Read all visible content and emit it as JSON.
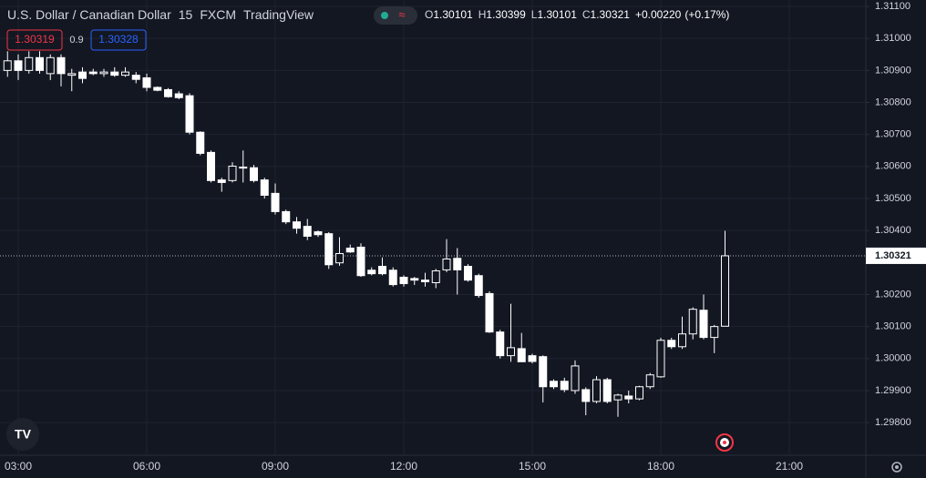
{
  "chart_data": {
    "type": "candlestick",
    "title": "U.S. Dollar / Canadian Dollar",
    "interval": "15",
    "source": "FXCM",
    "brand": "TradingView",
    "legend": {
      "labels": [
        "O",
        "H",
        "L",
        "C"
      ],
      "values": [
        1.30101,
        1.30399,
        1.30101,
        1.30321
      ],
      "change": "+0.00220",
      "change_pct": "(+0.17%)"
    },
    "sell": 1.30319,
    "spread": 0.9,
    "buy": 1.30328,
    "last_price": 1.30321,
    "up_color": "#131722",
    "down_color": "#ffffff",
    "wick_color": "#ffffff",
    "x": [
      "02:45",
      "03:00",
      "03:15",
      "03:30",
      "03:45",
      "04:00",
      "04:15",
      "04:30",
      "04:45",
      "05:00",
      "05:15",
      "05:30",
      "05:45",
      "06:00",
      "06:15",
      "06:30",
      "06:45",
      "07:00",
      "07:15",
      "07:30",
      "07:45",
      "08:00",
      "08:15",
      "08:30",
      "08:45",
      "09:00",
      "09:15",
      "09:30",
      "09:45",
      "10:00",
      "10:15",
      "10:30",
      "10:45",
      "11:00",
      "11:15",
      "11:30",
      "11:45",
      "12:00",
      "12:15",
      "12:30",
      "12:45",
      "13:00",
      "13:15",
      "13:30",
      "13:45",
      "14:00",
      "14:15",
      "14:30",
      "14:45",
      "15:00",
      "15:15",
      "15:30",
      "15:45",
      "16:00",
      "16:15",
      "16:30",
      "16:45",
      "17:00",
      "17:15",
      "17:30",
      "17:45",
      "18:00",
      "18:15",
      "18:30",
      "18:45",
      "19:00",
      "19:15",
      "19:30"
    ],
    "open": [
      1.309,
      1.3093,
      1.309,
      1.3094,
      1.3089,
      1.3094,
      1.30885,
      1.30895,
      1.30895,
      1.3089,
      1.30895,
      1.30885,
      1.30885,
      1.30877,
      1.30847,
      1.3084,
      1.30827,
      1.30821,
      1.30707,
      1.30644,
      1.30558,
      1.30556,
      1.30598,
      1.30596,
      1.30558,
      1.30516,
      1.30459,
      1.30427,
      1.30413,
      1.30396,
      1.3039,
      1.30299,
      1.30345,
      1.30348,
      1.30276,
      1.30288,
      1.30276,
      1.30254,
      1.3025,
      1.30245,
      1.30237,
      1.30277,
      1.30313,
      1.30288,
      1.30259,
      1.30203,
      1.30083,
      1.30009,
      1.30031,
      1.30009,
      1.30006,
      1.29929,
      1.29929,
      1.299,
      1.29903,
      1.29866,
      1.29934,
      1.29871,
      1.29883,
      1.29874,
      1.29912,
      1.29943,
      1.30057,
      1.30037,
      1.30077,
      1.30151,
      1.30066,
      1.30101
    ],
    "high": [
      1.3096,
      1.3095,
      1.3096,
      1.3096,
      1.3095,
      1.3095,
      1.30905,
      1.3091,
      1.30905,
      1.30905,
      1.3091,
      1.3091,
      1.30895,
      1.3089,
      1.3085,
      1.30845,
      1.30835,
      1.30829,
      1.3071,
      1.3065,
      1.30565,
      1.30613,
      1.3065,
      1.30605,
      1.30565,
      1.30547,
      1.30465,
      1.30442,
      1.30436,
      1.304,
      1.30395,
      1.30379,
      1.30356,
      1.3036,
      1.30285,
      1.30316,
      1.30285,
      1.3026,
      1.30255,
      1.30268,
      1.3028,
      1.30373,
      1.30345,
      1.30295,
      1.30265,
      1.3021,
      1.3009,
      1.30171,
      1.3008,
      1.30015,
      1.3001,
      1.29935,
      1.2994,
      1.29994,
      1.2991,
      1.29945,
      1.2994,
      1.2989,
      1.299,
      1.29915,
      1.29955,
      1.30065,
      1.30065,
      1.30131,
      1.3016,
      1.302,
      1.30105,
      1.30399
    ],
    "low": [
      1.3088,
      1.3087,
      1.3089,
      1.3089,
      1.3087,
      1.3085,
      1.30835,
      1.3086,
      1.30885,
      1.3088,
      1.3088,
      1.3088,
      1.3086,
      1.30835,
      1.30835,
      1.30815,
      1.3081,
      1.307,
      1.30635,
      1.3055,
      1.30521,
      1.3055,
      1.3055,
      1.3055,
      1.305,
      1.3045,
      1.3042,
      1.3039,
      1.3037,
      1.3038,
      1.3028,
      1.3029,
      1.3033,
      1.30255,
      1.3026,
      1.3026,
      1.30225,
      1.30225,
      1.3023,
      1.30225,
      1.3022,
      1.3027,
      1.302,
      1.3024,
      1.3019,
      1.3008,
      1.3,
      1.2999,
      1.2999,
      1.29985,
      1.29863,
      1.29905,
      1.29895,
      1.2989,
      1.29823,
      1.2986,
      1.2986,
      1.29818,
      1.2986,
      1.2987,
      1.29905,
      1.2994,
      1.3003,
      1.3003,
      1.3006,
      1.3006,
      1.30017,
      1.30101
    ],
    "close": [
      1.3093,
      1.309,
      1.3094,
      1.309,
      1.3094,
      1.3089,
      1.3089,
      1.30875,
      1.3089,
      1.30895,
      1.30885,
      1.30895,
      1.30872,
      1.30847,
      1.30838,
      1.30818,
      1.30815,
      1.30707,
      1.30641,
      1.30556,
      1.3055,
      1.30601,
      1.30595,
      1.30556,
      1.3051,
      1.30459,
      1.30427,
      1.30407,
      1.30382,
      1.30387,
      1.30293,
      1.30328,
      1.30333,
      1.30259,
      1.30265,
      1.30265,
      1.30231,
      1.30234,
      1.30245,
      1.3024,
      1.30274,
      1.30311,
      1.30277,
      1.30245,
      1.30197,
      1.30083,
      1.30009,
      1.30034,
      1.2999,
      1.29991,
      1.29912,
      1.29912,
      1.29903,
      1.29977,
      1.29866,
      1.29934,
      1.29866,
      1.29886,
      1.29874,
      1.29912,
      1.29949,
      1.30057,
      1.30037,
      1.30077,
      1.30154,
      1.30066,
      1.301,
      1.30321
    ],
    "ylim": [
      1.29698,
      1.3112
    ],
    "yticks": [
      {
        "value": 1.311,
        "label": "1.31100"
      },
      {
        "value": 1.31,
        "label": "1.31000"
      },
      {
        "value": 1.309,
        "label": "1.30900"
      },
      {
        "value": 1.308,
        "label": "1.30800"
      },
      {
        "value": 1.307,
        "label": "1.30700"
      },
      {
        "value": 1.306,
        "label": "1.30600"
      },
      {
        "value": 1.305,
        "label": "1.30500"
      },
      {
        "value": 1.304,
        "label": "1.30400"
      },
      {
        "value": 1.302,
        "label": "1.30200"
      },
      {
        "value": 1.301,
        "label": "1.30100"
      },
      {
        "value": 1.3,
        "label": "1.30000"
      },
      {
        "value": 1.299,
        "label": "1.29900"
      },
      {
        "value": 1.298,
        "label": "1.29800"
      }
    ],
    "xticks": [
      "03:00",
      "06:00",
      "09:00",
      "12:00",
      "15:00",
      "18:00",
      "21:00"
    ],
    "grid": true
  }
}
